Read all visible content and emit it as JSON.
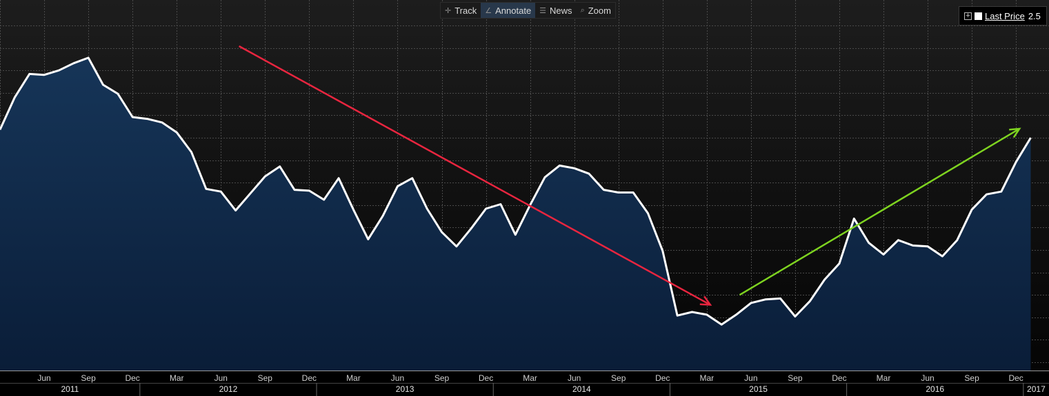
{
  "toolbar": {
    "track": "Track",
    "annotate": "Annotate",
    "news": "News",
    "zoom": "Zoom"
  },
  "legend": {
    "label": "Last Price",
    "value": "2.5",
    "swatch_color": "#ffffff"
  },
  "colors": {
    "line": "#ffffff",
    "area_top": "#163558",
    "area_bottom": "#0a1d38",
    "down_arrow": "#e8253f",
    "up_arrow": "#7ed320"
  },
  "chart_data": {
    "type": "area",
    "grid": true,
    "series": [
      {
        "x": [
          "2011-03",
          "2011-04",
          "2011-05",
          "2011-06",
          "2011-07",
          "2011-08",
          "2011-09",
          "2011-10",
          "2011-11",
          "2011-12",
          "2012-01",
          "2012-02",
          "2012-03",
          "2012-04",
          "2012-05",
          "2012-06",
          "2012-07",
          "2012-08",
          "2012-09",
          "2012-10",
          "2012-11",
          "2012-12",
          "2013-01",
          "2013-02",
          "2013-03",
          "2013-04",
          "2013-05",
          "2013-06",
          "2013-07",
          "2013-08",
          "2013-09",
          "2013-10",
          "2013-11",
          "2013-12",
          "2014-01",
          "2014-02",
          "2014-03",
          "2014-04",
          "2014-05",
          "2014-06",
          "2014-07",
          "2014-08",
          "2014-09",
          "2014-10",
          "2014-11",
          "2014-12",
          "2015-01",
          "2015-02",
          "2015-03",
          "2015-04",
          "2015-05",
          "2015-06",
          "2015-07",
          "2015-08",
          "2015-09",
          "2015-10",
          "2015-11",
          "2015-12",
          "2016-01",
          "2016-02",
          "2016-03",
          "2016-04",
          "2016-05",
          "2016-06",
          "2016-07",
          "2016-08",
          "2016-09",
          "2016-10",
          "2016-11",
          "2016-12",
          "2017-01"
        ],
        "values": [
          2.59,
          2.95,
          3.21,
          3.2,
          3.25,
          3.33,
          3.39,
          3.09,
          2.99,
          2.73,
          2.71,
          2.67,
          2.56,
          2.34,
          1.93,
          1.9,
          1.69,
          1.88,
          2.07,
          2.18,
          1.92,
          1.91,
          1.81,
          2.05,
          1.7,
          1.37,
          1.63,
          1.96,
          2.05,
          1.71,
          1.45,
          1.29,
          1.49,
          1.71,
          1.76,
          1.42,
          1.75,
          2.06,
          2.19,
          2.16,
          2.1,
          1.92,
          1.89,
          1.89,
          1.66,
          1.24,
          0.52,
          0.56,
          0.53,
          0.42,
          0.53,
          0.66,
          0.7,
          0.71,
          0.51,
          0.68,
          0.92,
          1.1,
          1.6,
          1.33,
          1.2,
          1.36,
          1.3,
          1.29,
          1.18,
          1.36,
          1.7,
          1.87,
          1.9,
          2.23,
          2.5
        ]
      }
    ],
    "ylim": [
      0.0,
      3.75
    ],
    "x_tick_labels": [
      "Jun",
      "Sep",
      "Dec",
      "Mar",
      "Jun",
      "Sep",
      "Dec",
      "Mar",
      "Jun",
      "Sep",
      "Dec",
      "Mar",
      "Jun",
      "Sep",
      "Dec",
      "Mar",
      "Jun",
      "Sep",
      "Dec",
      "Mar",
      "Jun",
      "Sep",
      "Dec"
    ],
    "year_labels": [
      "2011",
      "2012",
      "2013",
      "2014",
      "2015",
      "2016",
      "2017"
    ],
    "annotations": [
      {
        "type": "arrow",
        "color": "down",
        "from": [
          "2012-07",
          3.52
        ],
        "to": [
          "2015-03",
          0.64
        ]
      },
      {
        "type": "arrow",
        "color": "up",
        "from": [
          "2015-05",
          0.75
        ],
        "to": [
          "2016-12",
          2.6
        ]
      }
    ]
  }
}
